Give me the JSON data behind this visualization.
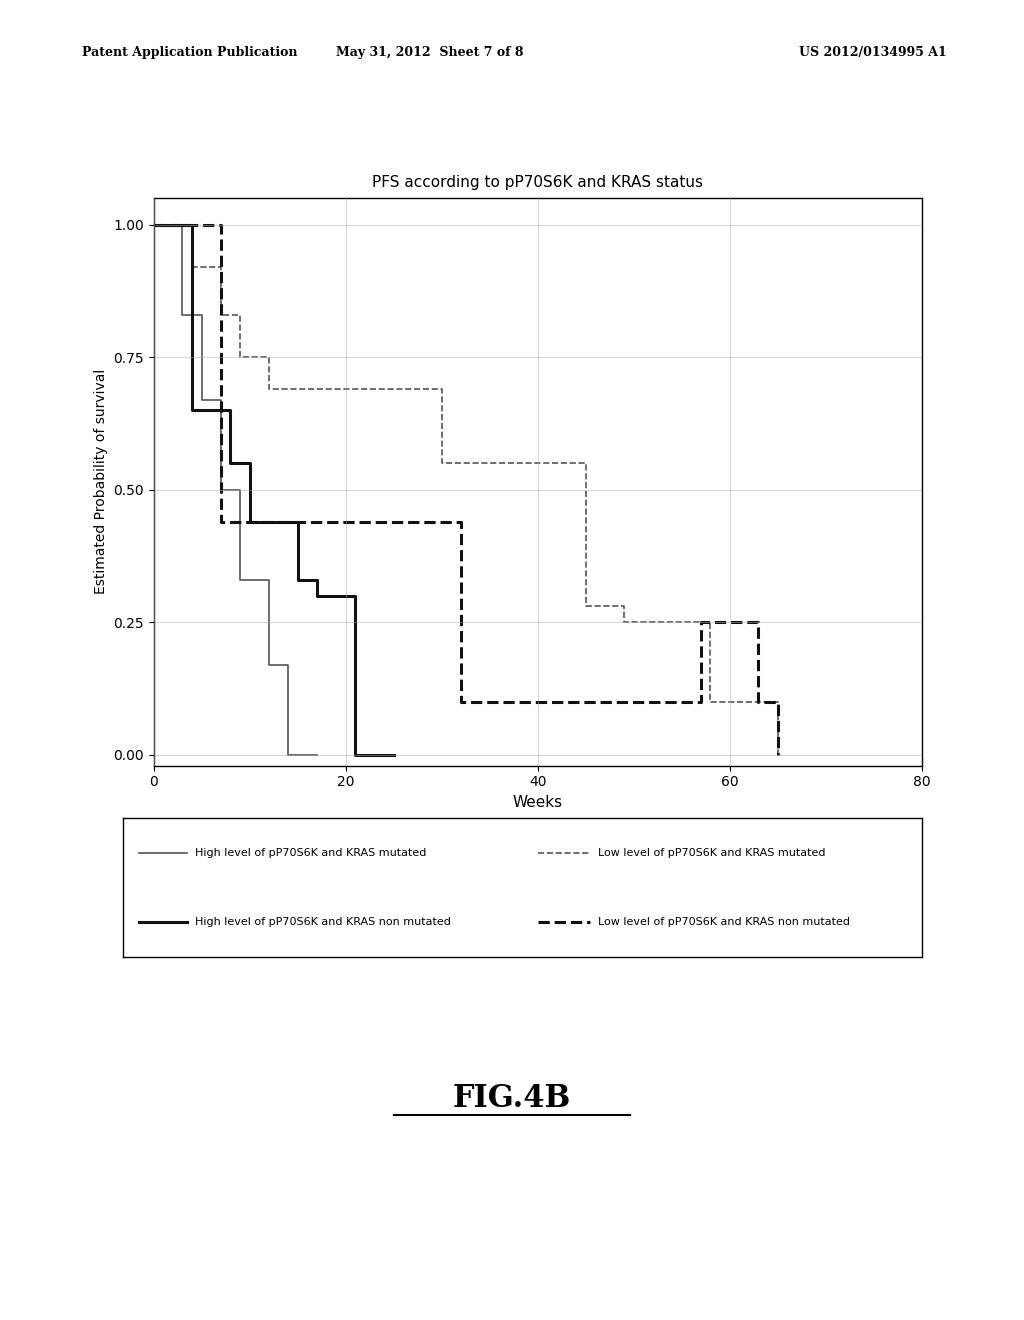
{
  "title": "PFS according to pP70S6K and KRAS status",
  "xlabel": "Weeks",
  "ylabel": "Estimated Probability of survival",
  "xlim": [
    0,
    80
  ],
  "ylim": [
    -0.02,
    1.05
  ],
  "xticks": [
    0,
    20,
    40,
    60,
    80
  ],
  "yticks": [
    0.0,
    0.25,
    0.5,
    0.75,
    1.0
  ],
  "background_color": "#ffffff",
  "header_left": "Patent Application Publication",
  "header_center": "May 31, 2012  Sheet 7 of 8",
  "header_right": "US 2012/0134995 A1",
  "fig_label": "FIG.4B"
}
